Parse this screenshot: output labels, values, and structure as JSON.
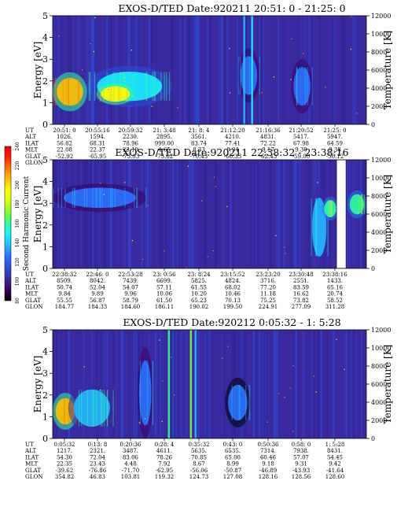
{
  "colorbar": {
    "title": "Second Harmonic Current",
    "ticks": [
      "240",
      "220",
      "200",
      "180",
      "160",
      "140",
      "120",
      "100",
      "80"
    ],
    "range": [
      80,
      240
    ],
    "colors": [
      "#000000",
      "#3a0060",
      "#3a2aa0",
      "#2f4ad8",
      "#2b73ff",
      "#22b8ff",
      "#18f0ff",
      "#2cff9a",
      "#7cff2a",
      "#d8ff10",
      "#ffff00",
      "#ffc000",
      "#ff7800",
      "#ff2000",
      "#f00000"
    ]
  },
  "chart_data": [
    {
      "type": "heatmap",
      "title": "EXOS-D/TED   Date:920211  20:51: 0 - 21:25: 0",
      "ylabel": "Energy [eV]",
      "y2label": "Temperature [K]",
      "yticks": [
        "0",
        "1",
        "2",
        "3",
        "4",
        "5"
      ],
      "y2ticks": [
        "0",
        "2000",
        "4000",
        "6000",
        "8000",
        "10000",
        "12000"
      ],
      "ylim": [
        0,
        5
      ],
      "y2lim": [
        0,
        12000
      ],
      "rows": {
        "UT": [
          "20:51: 0",
          "20:55:16",
          "20:59:32",
          "21: 3:48",
          "21: 8: 4",
          "21:12:20",
          "21:16:36",
          "21:20:52",
          "21:25: 0"
        ],
        "ALT": [
          "1026.",
          "1594.",
          "2230.",
          "2895.",
          "3561.",
          "4210.",
          "4831.",
          "5417.",
          "5947."
        ],
        "ILAT": [
          "56.82",
          "68.31",
          "78.96",
          "999.00",
          "83.74",
          "77.41",
          "72.22",
          "67.98",
          "64.59"
        ],
        "MLT": [
          "22.08",
          "22.37",
          "23.19",
          "4.65",
          "8.33",
          "8.94",
          "9.17",
          "9.30",
          "9.38"
        ],
        "GLAT": [
          "-52.92",
          "-65.95",
          "-73.03",
          "-73.62",
          "-70.43",
          "-66.33",
          "-62.43",
          "-59.00",
          "-56.12"
        ],
        "GLON": [
          "40.61",
          "57.63",
          "86.35",
          "119.63",
          "141.66",
          "153.43",
          "159.93",
          "163.75",
          "166.03"
        ]
      },
      "features": [
        {
          "t": [
            0.0,
            0.11
          ],
          "e": [
            0.6,
            2.4
          ],
          "level": 200
        },
        {
          "t": [
            0.11,
            0.38
          ],
          "e": [
            0.8,
            2.7
          ],
          "level": 150
        },
        {
          "t": [
            0.14,
            0.26
          ],
          "e": [
            0.9,
            1.9
          ],
          "level": 190
        },
        {
          "t": [
            0.59,
            0.66
          ],
          "e": [
            1.0,
            3.5
          ],
          "level": 125
        },
        {
          "t": [
            0.76,
            0.83
          ],
          "e": [
            0.5,
            3.0
          ],
          "level": 125
        }
      ],
      "spikes": [
        {
          "t": 0.61,
          "level": 135
        },
        {
          "t": 0.635,
          "level": 150
        }
      ]
    },
    {
      "type": "heatmap",
      "title": "EXOS-D/TED   Date:920211  22:38:32 - 23:38:16",
      "ylabel": "Energy [eV]",
      "y2label": "Temperature [K]",
      "yticks": [
        "0",
        "1",
        "2",
        "3",
        "4",
        "5"
      ],
      "y2ticks": [
        "0",
        "2000",
        "4000",
        "6000",
        "8000",
        "10000",
        "12000"
      ],
      "ylim": [
        0,
        5
      ],
      "y2lim": [
        0,
        12000
      ],
      "rows": {
        "UT": [
          "22:38:32",
          "22:46: 0",
          "22:53:28",
          "23: 0:56",
          "23: 8:24",
          "23:15:52",
          "23:23:20",
          "23:30:48",
          "23:38:16"
        ],
        "ALT": [
          "8509.",
          "8042.",
          "7439.",
          "6699.",
          "5825.",
          "4824.",
          "3716.",
          "2551.",
          "1433."
        ],
        "ILAT": [
          "50.74",
          "52.04",
          "54.07",
          "57.11",
          "61.55",
          "68.02",
          "77.20",
          "83.59",
          "65.16"
        ],
        "MLT": [
          "9.84",
          "9.89",
          "9.96",
          "10.06",
          "10.20",
          "10.46",
          "11.18",
          "16.62",
          "20.74"
        ],
        "GLAT": [
          "55.55",
          "56.87",
          "58.79",
          "61.50",
          "65.23",
          "70.13",
          "75.25",
          "73.82",
          "58.52"
        ],
        "GLON": [
          "184.77",
          "184.33",
          "184.60",
          "186.11",
          "190.02",
          "199.50",
          "224.91",
          "277.09",
          "311.28"
        ]
      },
      "features": [
        {
          "t": [
            0.0,
            0.3
          ],
          "e": [
            2.6,
            3.9
          ],
          "level": 125
        },
        {
          "t": [
            0.82,
            0.88
          ],
          "e": [
            0.0,
            3.8
          ],
          "level": 135
        },
        {
          "t": [
            0.86,
            0.91
          ],
          "e": [
            2.2,
            3.3
          ],
          "level": 165
        },
        {
          "t": [
            0.94,
            1.0
          ],
          "e": [
            2.3,
            3.6
          ],
          "level": 160
        }
      ],
      "spikes": [],
      "datagap": [
        0.905,
        0.935
      ]
    },
    {
      "type": "heatmap",
      "title": "EXOS-D/TED   Date:920212  0:05:32 - 1: 5:28",
      "ylabel": "Energy [eV]",
      "y2label": "Temperature [K]",
      "yticks": [
        "0",
        "1",
        "2",
        "3",
        "4",
        "5"
      ],
      "y2ticks": [
        "0",
        "2000",
        "4000",
        "6000",
        "8000",
        "10000",
        "12000"
      ],
      "ylim": [
        0,
        5
      ],
      "y2lim": [
        0,
        12000
      ],
      "rows": {
        "UT": [
          "0:05:32",
          "0:13: 8",
          "0:20:36",
          "0:28: 4",
          "0:35:32",
          "0:43: 0",
          "0:50:36",
          "0:58: 0",
          "1: 5:28"
        ],
        "ALT": [
          "1217.",
          "2321.",
          "3487.",
          "4611.",
          "5635.",
          "6535.",
          "7314.",
          "7938.",
          "8431."
        ],
        "ILAT": [
          "54.30",
          "72.04",
          "83.06",
          "78.26",
          "70.85",
          "65.00",
          "60.46",
          "57.07",
          "54.45"
        ],
        "MLT": [
          "22.35",
          "23.43",
          "4.48",
          "7.92",
          "8.67",
          "8.99",
          "9.18",
          "9.31",
          "9.42"
        ],
        "GLAT": [
          "-39.62",
          "-76.86",
          "-71.70",
          "-62.95",
          "-56.06",
          "-50.87",
          "-46.89",
          "-43.93",
          "-41.64"
        ],
        "GLON": [
          "354.82",
          "46.83",
          "103.81",
          "119.32",
          "124.73",
          "127.08",
          "128.16",
          "128.56",
          "128.60"
        ]
      },
      "features": [
        {
          "t": [
            0.0,
            0.08
          ],
          "e": [
            0.4,
            2.1
          ],
          "level": 200
        },
        {
          "t": [
            0.05,
            0.2
          ],
          "e": [
            0.2,
            2.6
          ],
          "level": 140
        },
        {
          "t": [
            0.27,
            0.32
          ],
          "e": [
            0.0,
            4.2
          ],
          "level": 125
        },
        {
          "t": [
            0.55,
            0.63
          ],
          "e": [
            0.5,
            2.8
          ],
          "level": 120
        }
      ],
      "spikes": [
        {
          "t": 0.37,
          "level": 165
        },
        {
          "t": 0.44,
          "level": 175
        },
        {
          "t": 0.455,
          "level": 140
        }
      ]
    }
  ]
}
